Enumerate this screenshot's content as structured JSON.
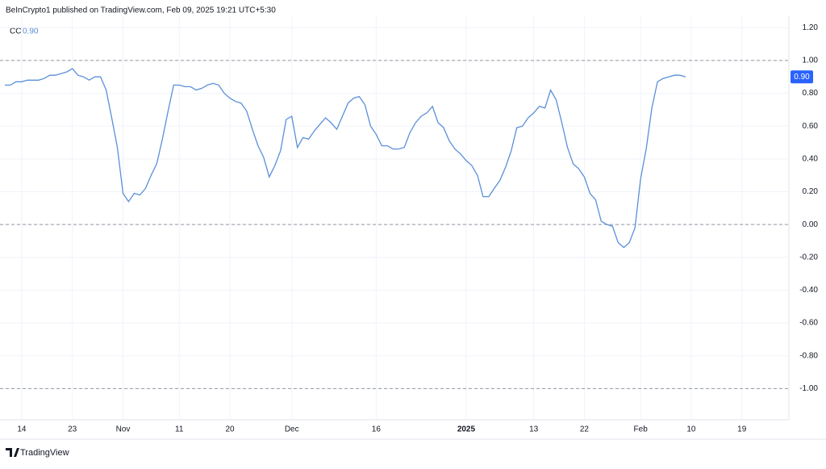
{
  "header": "BeInCrypto1 published on TradingView.com, Feb 09, 2025 19:21 UTC+5:30",
  "footer": "TradingView",
  "chart_data": {
    "type": "line",
    "categories": [
      null,
      null,
      null,
      "14",
      null,
      null,
      null,
      null,
      null,
      null,
      null,
      null,
      "23",
      null,
      null,
      null,
      null,
      null,
      null,
      null,
      null,
      "Nov",
      null,
      null,
      null,
      null,
      null,
      null,
      null,
      null,
      null,
      "11",
      null,
      null,
      null,
      null,
      null,
      null,
      null,
      null,
      "20",
      null,
      null,
      null,
      null,
      null,
      null,
      null,
      null,
      null,
      null,
      "Dec",
      null,
      null,
      null,
      null,
      null,
      null,
      null,
      null,
      null,
      null,
      null,
      null,
      null,
      null,
      "16",
      null,
      null,
      null,
      null,
      null,
      null,
      null,
      null,
      null,
      null,
      null,
      null,
      null,
      null,
      null,
      "2025",
      null,
      null,
      null,
      null,
      null,
      null,
      null,
      null,
      null,
      null,
      null,
      "13",
      null,
      null,
      null,
      null,
      null,
      null,
      null,
      null,
      "22",
      null,
      null,
      null,
      null,
      null,
      null,
      null,
      null,
      null,
      "Feb",
      null,
      null,
      null,
      null,
      null,
      null,
      null,
      null,
      "10",
      null,
      null,
      null,
      null,
      null,
      null,
      null,
      null,
      "19",
      null,
      null,
      null,
      null,
      null,
      null,
      null
    ],
    "series": [
      {
        "name": "CC",
        "color": "#5b8fd9",
        "current_value_label": "0.90",
        "values": [
          0.85,
          0.85,
          0.87,
          0.87,
          0.88,
          0.88,
          0.88,
          0.89,
          0.91,
          0.91,
          0.92,
          0.93,
          0.95,
          0.91,
          0.9,
          0.88,
          0.9,
          0.9,
          0.82,
          0.65,
          0.47,
          0.19,
          0.14,
          0.19,
          0.18,
          0.22,
          0.3,
          0.37,
          0.52,
          0.69,
          0.85,
          0.85,
          0.84,
          0.84,
          0.82,
          0.83,
          0.85,
          0.86,
          0.85,
          0.8,
          0.77,
          0.75,
          0.74,
          0.69,
          0.58,
          0.48,
          0.41,
          0.29,
          0.36,
          0.45,
          0.64,
          0.66,
          0.47,
          0.53,
          0.52,
          0.57,
          0.61,
          0.65,
          0.62,
          0.58,
          0.66,
          0.74,
          0.77,
          0.78,
          0.73,
          0.6,
          0.55,
          0.48,
          0.48,
          0.46,
          0.46,
          0.47,
          0.56,
          0.62,
          0.66,
          0.68,
          0.72,
          0.62,
          0.59,
          0.51,
          0.46,
          0.43,
          0.39,
          0.36,
          0.3,
          0.17,
          0.17,
          0.22,
          0.27,
          0.35,
          0.45,
          0.59,
          0.6,
          0.65,
          0.68,
          0.72,
          0.71,
          0.82,
          0.76,
          0.62,
          0.47,
          0.37,
          0.34,
          0.29,
          0.19,
          0.15,
          0.02,
          0.0,
          -0.01,
          -0.11,
          -0.14,
          -0.11,
          -0.02,
          0.28,
          0.46,
          0.71,
          0.87,
          0.89,
          0.9,
          0.91,
          0.91,
          0.9,
          null,
          null,
          null,
          null,
          null,
          null,
          null,
          null,
          null,
          null,
          null,
          null,
          null,
          null,
          null,
          null,
          null
        ]
      }
    ],
    "ylim": [
      -1.19,
      1.27
    ],
    "yticks": [
      {
        "value": 1.2,
        "label": "1.20"
      },
      {
        "value": 1,
        "label": "1.00"
      },
      {
        "value": 0.8,
        "label": "0.80"
      },
      {
        "value": 0.6,
        "label": "0.60"
      },
      {
        "value": 0.4,
        "label": "0.40"
      },
      {
        "value": 0.2,
        "label": "0.20"
      },
      {
        "value": 0,
        "label": "0.00"
      },
      {
        "value": -0.2,
        "label": "-0.20"
      },
      {
        "value": -0.4,
        "label": "-0.40"
      },
      {
        "value": -0.6,
        "label": "-0.60"
      },
      {
        "value": -0.8,
        "label": "-0.80"
      },
      {
        "value": -1,
        "label": "-1.00"
      }
    ],
    "hlines": [
      1,
      0,
      -1
    ],
    "grid": true
  }
}
